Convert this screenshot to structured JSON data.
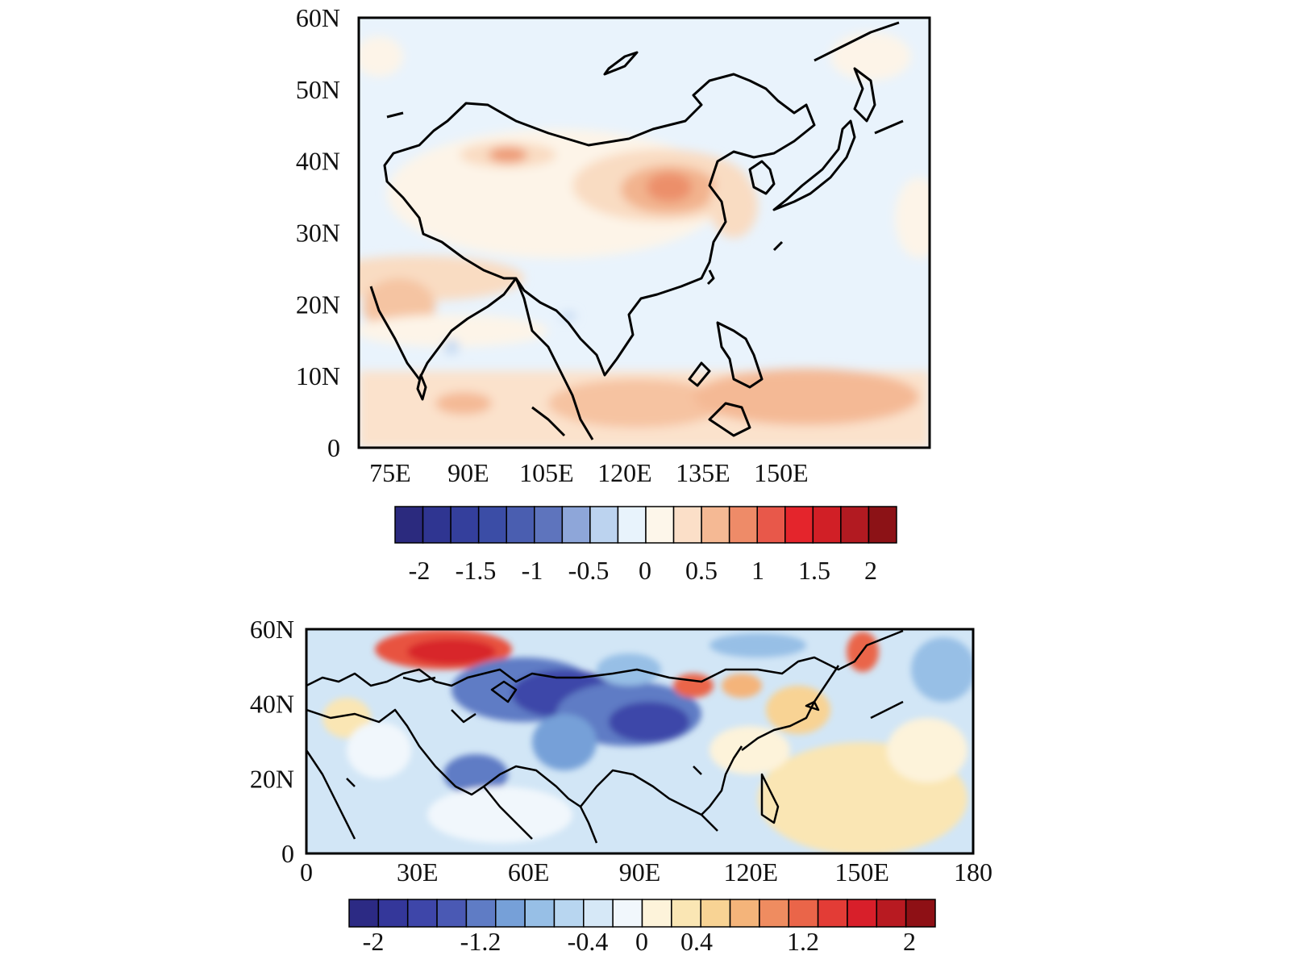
{
  "panels": [
    {
      "lat_ticks": [
        "60N",
        "50N",
        "40N",
        "30N",
        "20N",
        "10N",
        "0"
      ],
      "lon_ticks": [
        "75E",
        "90E",
        "105E",
        "120E",
        "135E",
        "150E"
      ],
      "colorbar": {
        "colors": [
          "#2b2a7e",
          "#2f3591",
          "#343f9c",
          "#3b4da6",
          "#4a5eb0",
          "#5e74bd",
          "#8ea6d9",
          "#bcd3ef",
          "#e8f3fc",
          "#fdf6ea",
          "#fbdfc8",
          "#f5b994",
          "#ee8b68",
          "#e8584a",
          "#e4252c",
          "#d11f26",
          "#b21a21",
          "#8c1216"
        ],
        "labels": [
          "-2",
          "-1.5",
          "-1",
          "-0.5",
          "0",
          "0.5",
          "1",
          "1.5",
          "2"
        ]
      }
    },
    {
      "lat_ticks": [
        "60N",
        "40N",
        "20N",
        "0"
      ],
      "lon_ticks": [
        "0",
        "30E",
        "60E",
        "90E",
        "120E",
        "150E",
        "180"
      ],
      "colorbar": {
        "colors": [
          "#2c2a84",
          "#34379a",
          "#3e46a9",
          "#4a59b4",
          "#5f7cc5",
          "#76a0d8",
          "#97bfe6",
          "#b8d6f0",
          "#d6e8f7",
          "#f1f7fc",
          "#fdf3da",
          "#fae6b4",
          "#f8d394",
          "#f4b47a",
          "#ef8c60",
          "#ea6549",
          "#e33c36",
          "#d81f2a",
          "#b81a21",
          "#8e1015"
        ],
        "labels": [
          "-2",
          "-1.2",
          "-0.4",
          "0",
          "0.4",
          "1.2",
          "2"
        ]
      }
    }
  ]
}
